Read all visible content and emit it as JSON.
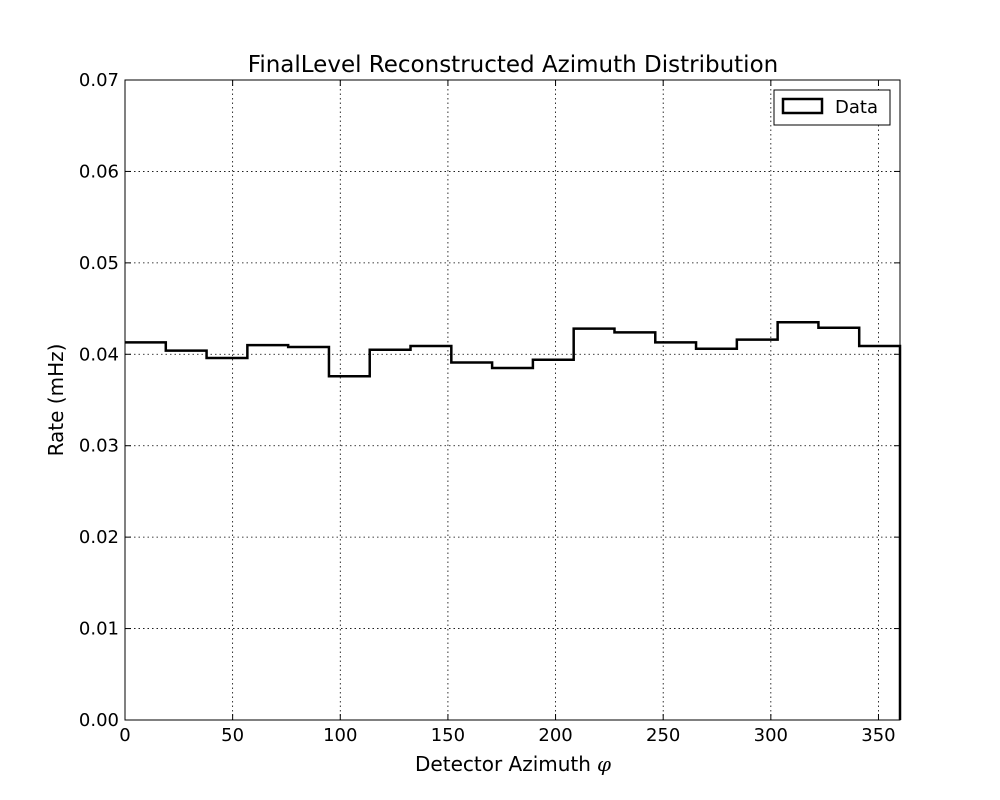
{
  "chart_data": {
    "type": "step",
    "title": "FinalLevel Reconstructed Azimuth Distribution",
    "xlabel": "Detector Azimuth",
    "xlabel_symbol": "φ",
    "ylabel": "Rate (mHz)",
    "xlim": [
      0,
      360
    ],
    "ylim": [
      0,
      0.07
    ],
    "xticks": [
      0,
      50,
      100,
      150,
      200,
      250,
      300,
      350
    ],
    "xtick_labels": [
      "0",
      "50",
      "100",
      "150",
      "200",
      "250",
      "300",
      "350"
    ],
    "yticks": [
      0,
      0.01,
      0.02,
      0.03,
      0.04,
      0.05,
      0.06,
      0.07
    ],
    "ytick_labels": [
      "0.00",
      "0.01",
      "0.02",
      "0.03",
      "0.04",
      "0.05",
      "0.06",
      "0.07"
    ],
    "grid": true,
    "legend_position": "top-right",
    "series": [
      {
        "name": "Data",
        "color": "#000000",
        "bin_edges": [
          0,
          18.95,
          37.89,
          56.84,
          75.79,
          94.74,
          113.68,
          132.63,
          151.58,
          170.53,
          189.47,
          208.42,
          227.37,
          246.32,
          265.26,
          284.21,
          303.16,
          322.11,
          341.05,
          360
        ],
        "values": [
          0.0413,
          0.0404,
          0.0396,
          0.041,
          0.0408,
          0.0376,
          0.0405,
          0.0409,
          0.0391,
          0.0385,
          0.0394,
          0.0428,
          0.0424,
          0.0413,
          0.0406,
          0.0416,
          0.0435,
          0.0429,
          0.0409
        ]
      }
    ]
  }
}
